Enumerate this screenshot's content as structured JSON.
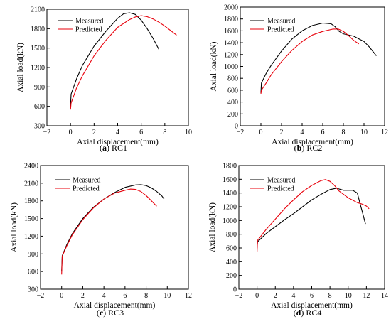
{
  "chart_data": [
    {
      "type": "line",
      "caption": "(a) RC1",
      "caption_letter": "a",
      "caption_name": "RC1",
      "xlabel": "Axial displacement(mm)",
      "ylabel": "Axial load(kN)",
      "xlim": [
        -2,
        10
      ],
      "ylim": [
        300,
        2100
      ],
      "xticks": [
        -2,
        0,
        2,
        4,
        6,
        8,
        10
      ],
      "yticks": [
        300,
        600,
        900,
        1200,
        1500,
        1800,
        2100
      ],
      "legend_position": "top-left",
      "series": [
        {
          "name": "Measured",
          "color": "#000000",
          "x": [
            0,
            0.05,
            0.5,
            1,
            2,
            3,
            4,
            4.5,
            5,
            5.5,
            6,
            6.5,
            7,
            7.5
          ],
          "y": [
            600,
            790,
            1020,
            1230,
            1530,
            1760,
            1960,
            2030,
            2045,
            2020,
            1930,
            1800,
            1650,
            1480
          ]
        },
        {
          "name": "Predicted",
          "color": "#e8000b",
          "x": [
            0,
            0.05,
            0.5,
            1,
            2,
            3,
            4,
            5,
            5.5,
            6,
            6.5,
            7,
            7.5,
            8,
            8.5,
            9
          ],
          "y": [
            550,
            650,
            880,
            1070,
            1380,
            1620,
            1820,
            1940,
            1980,
            2000,
            1985,
            1950,
            1900,
            1840,
            1770,
            1700
          ]
        }
      ]
    },
    {
      "type": "line",
      "caption": "(b) RC2",
      "caption_letter": "b",
      "caption_name": "RC2",
      "xlabel": "Axial displacement(mm)",
      "ylabel": "Axial load(kN)",
      "xlim": [
        -2,
        12
      ],
      "ylim": [
        0,
        2000
      ],
      "xticks": [
        -2,
        0,
        2,
        4,
        6,
        8,
        10,
        12
      ],
      "yticks": [
        0,
        200,
        400,
        600,
        800,
        1000,
        1200,
        1400,
        1600,
        1800,
        2000
      ],
      "legend_position": "top-left",
      "series": [
        {
          "name": "Measured",
          "color": "#000000",
          "x": [
            0,
            0.05,
            0.5,
            1,
            2,
            3,
            4,
            5,
            6,
            6.8,
            7.2,
            7.6,
            8,
            9,
            10,
            10.5,
            11.2
          ],
          "y": [
            550,
            720,
            880,
            1020,
            1260,
            1460,
            1600,
            1690,
            1730,
            1720,
            1670,
            1590,
            1550,
            1510,
            1420,
            1330,
            1180
          ]
        },
        {
          "name": "Predicted",
          "color": "#e8000b",
          "x": [
            0,
            0.05,
            0.5,
            1,
            2,
            3,
            4,
            5,
            6,
            7,
            7.5,
            8,
            8.5,
            9,
            9.5
          ],
          "y": [
            540,
            600,
            720,
            860,
            1080,
            1270,
            1420,
            1530,
            1590,
            1630,
            1630,
            1590,
            1520,
            1440,
            1380
          ]
        }
      ]
    },
    {
      "type": "line",
      "caption": "(c) RC3",
      "caption_letter": "c",
      "caption_name": "RC3",
      "xlabel": "Axial displacement(mm)",
      "ylabel": "Axial load(kN)",
      "xlim": [
        -2,
        12
      ],
      "ylim": [
        300,
        2400
      ],
      "xticks": [
        -2,
        0,
        2,
        4,
        6,
        8,
        10,
        12
      ],
      "yticks": [
        300,
        600,
        900,
        1200,
        1500,
        1800,
        2100,
        2400
      ],
      "legend_position": "top-left",
      "series": [
        {
          "name": "Measured",
          "color": "#000000",
          "x": [
            0,
            0.05,
            0.5,
            1,
            2,
            3,
            4,
            5,
            6,
            7,
            7.5,
            8,
            8.5,
            9,
            9.5,
            9.7
          ],
          "y": [
            600,
            870,
            1060,
            1240,
            1500,
            1690,
            1830,
            1940,
            2030,
            2070,
            2075,
            2060,
            2020,
            1960,
            1880,
            1830
          ]
        },
        {
          "name": "Predicted",
          "color": "#e8000b",
          "x": [
            0,
            0.05,
            0.5,
            1,
            2,
            3,
            4,
            5,
            6,
            6.5,
            7,
            7.5,
            8,
            8.5,
            9
          ],
          "y": [
            550,
            860,
            1040,
            1220,
            1480,
            1680,
            1830,
            1930,
            1980,
            2000,
            1995,
            1960,
            1890,
            1800,
            1710
          ]
        }
      ]
    },
    {
      "type": "line",
      "caption": "(d) RC4",
      "caption_letter": "d",
      "caption_name": "RC4",
      "xlabel": "Axial displacement(mm)",
      "ylabel": "Axial load(kN)",
      "xlim": [
        -2,
        14
      ],
      "ylim": [
        0,
        1800
      ],
      "xticks": [
        -2,
        0,
        2,
        4,
        6,
        8,
        10,
        12,
        14
      ],
      "yticks": [
        0,
        200,
        400,
        600,
        800,
        1000,
        1200,
        1400,
        1600,
        1800
      ],
      "legend_position": "top-left",
      "series": [
        {
          "name": "Measured",
          "color": "#000000",
          "x": [
            0,
            0.05,
            1,
            2,
            3,
            4,
            5,
            6,
            7,
            8,
            8.7,
            9.5,
            10.5,
            11,
            11.3,
            11.6,
            11.9
          ],
          "y": [
            600,
            690,
            810,
            910,
            1010,
            1100,
            1200,
            1300,
            1380,
            1450,
            1470,
            1440,
            1440,
            1400,
            1250,
            1100,
            950
          ]
        },
        {
          "name": "Predicted",
          "color": "#e8000b",
          "x": [
            0,
            0.05,
            1,
            2,
            3,
            4,
            5,
            6,
            7,
            7.5,
            8,
            8.5,
            9,
            10,
            11,
            11.5,
            12,
            12.3
          ],
          "y": [
            540,
            710,
            870,
            1020,
            1170,
            1300,
            1420,
            1510,
            1580,
            1595,
            1570,
            1510,
            1430,
            1330,
            1260,
            1240,
            1210,
            1170
          ]
        }
      ]
    }
  ]
}
